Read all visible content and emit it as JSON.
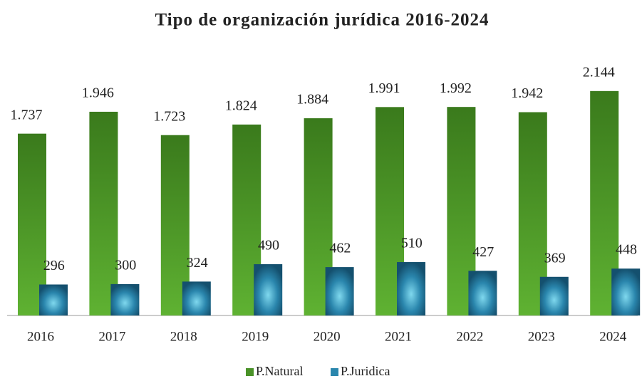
{
  "chart_data": {
    "type": "bar",
    "title": "Tipo de organización jurídica 2016-2024",
    "categories": [
      "2016",
      "2017",
      "2018",
      "2019",
      "2020",
      "2021",
      "2022",
      "2023",
      "2024"
    ],
    "series": [
      {
        "name": "P.Natural",
        "color": "#4a9228",
        "values": [
          1737,
          1946,
          1723,
          1824,
          1884,
          1991,
          1992,
          1942,
          2144
        ],
        "value_labels": [
          "1.737",
          "1.946",
          "1.723",
          "1.824",
          "1.884",
          "1.991",
          "1.992",
          "1.942",
          "2.144"
        ]
      },
      {
        "name": "P.Juridica",
        "color": "#1f6f95",
        "values": [
          296,
          300,
          324,
          490,
          462,
          510,
          427,
          369,
          448
        ],
        "value_labels": [
          "296",
          "300",
          "324",
          "490",
          "462",
          "510",
          "427",
          "369",
          "448"
        ]
      }
    ]
  }
}
